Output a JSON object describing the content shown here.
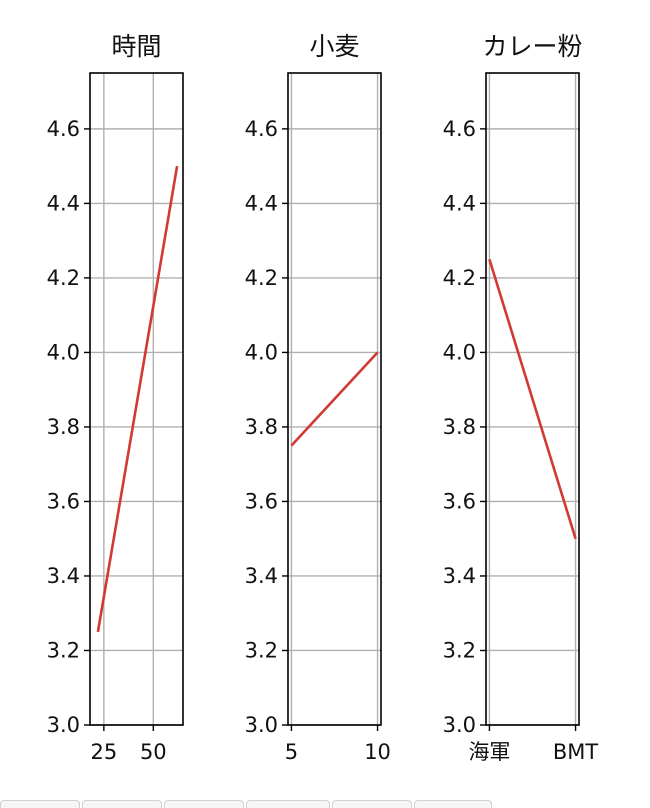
{
  "colors": {
    "line": "#d03a32",
    "grid": "#b0b0b0",
    "frame": "#000000"
  },
  "chart_data": [
    {
      "type": "line",
      "title": "時間",
      "x": [
        22,
        62
      ],
      "y": [
        3.25,
        4.5
      ],
      "xlim": [
        18,
        65
      ],
      "xticks": [
        25,
        50
      ],
      "xticklabels": [
        "25",
        "50"
      ],
      "ylim": [
        3.0,
        4.75
      ],
      "yticks": [
        3.0,
        3.2,
        3.4,
        3.6,
        3.8,
        4.0,
        4.2,
        4.4,
        4.6
      ],
      "yticklabels": [
        "3.0",
        "3.2",
        "3.4",
        "3.6",
        "3.8",
        "4.0",
        "4.2",
        "4.4",
        "4.6"
      ],
      "grid": true
    },
    {
      "type": "line",
      "title": "小麦",
      "x": [
        5,
        10
      ],
      "y": [
        3.75,
        4.0
      ],
      "xlim": [
        4.8,
        10.2
      ],
      "xticks": [
        5,
        10
      ],
      "xticklabels": [
        "5",
        "10"
      ],
      "ylim": [
        3.0,
        4.75
      ],
      "yticks": [
        3.0,
        3.2,
        3.4,
        3.6,
        3.8,
        4.0,
        4.2,
        4.4,
        4.6
      ],
      "yticklabels": [
        "3.0",
        "3.2",
        "3.4",
        "3.6",
        "3.8",
        "4.0",
        "4.2",
        "4.4",
        "4.6"
      ],
      "grid": true
    },
    {
      "type": "line",
      "title": "カレー粉",
      "x": [
        0,
        1
      ],
      "y": [
        4.25,
        3.5
      ],
      "xlim": [
        -0.04,
        1.04
      ],
      "xticks": [
        0,
        1
      ],
      "xticklabels": [
        "海軍",
        "BMT"
      ],
      "ylim": [
        3.0,
        4.75
      ],
      "yticks": [
        3.0,
        3.2,
        3.4,
        3.6,
        3.8,
        4.0,
        4.2,
        4.4,
        4.6
      ],
      "yticklabels": [
        "3.0",
        "3.2",
        "3.4",
        "3.6",
        "3.8",
        "4.0",
        "4.2",
        "4.4",
        "4.6"
      ],
      "grid": true
    }
  ]
}
